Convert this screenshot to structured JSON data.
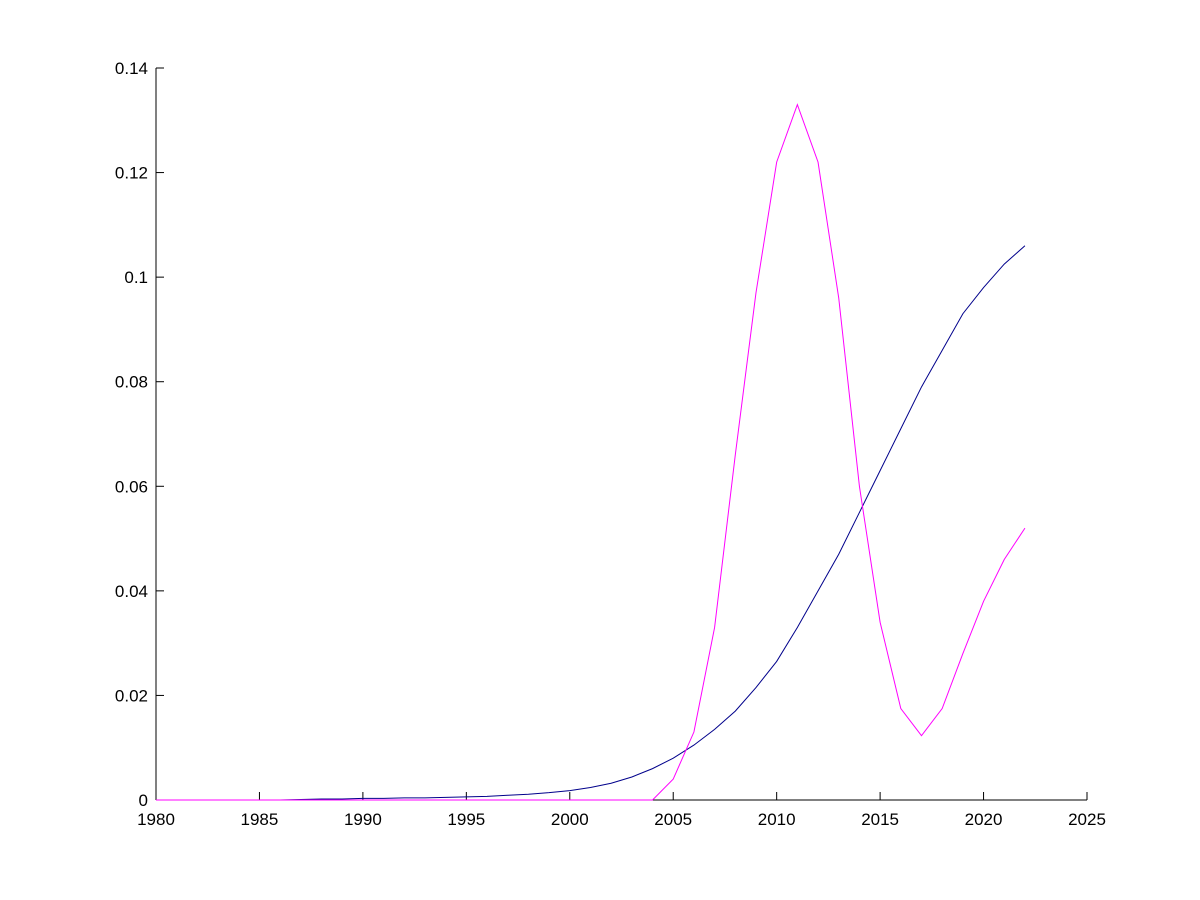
{
  "chart_data": {
    "type": "line",
    "x": [
      1980,
      1981,
      1982,
      1983,
      1984,
      1985,
      1986,
      1987,
      1988,
      1989,
      1990,
      1991,
      1992,
      1993,
      1994,
      1995,
      1996,
      1997,
      1998,
      1999,
      2000,
      2001,
      2002,
      2003,
      2004,
      2005,
      2006,
      2007,
      2008,
      2009,
      2010,
      2011,
      2012,
      2013,
      2014,
      2015,
      2016,
      2017,
      2018,
      2019,
      2020,
      2021,
      2022
    ],
    "series": [
      {
        "color": "#00008b",
        "values": [
          0,
          0,
          0,
          0,
          0,
          0,
          0,
          0.0001,
          0.0002,
          0.0002,
          0.0003,
          0.0003,
          0.0004,
          0.0004,
          0.0005,
          0.0006,
          0.0007,
          0.0009,
          0.0011,
          0.0014,
          0.0018,
          0.0024,
          0.0032,
          0.0044,
          0.006,
          0.008,
          0.0105,
          0.0135,
          0.017,
          0.0215,
          0.0265,
          0.033,
          0.04,
          0.047,
          0.055,
          0.063,
          0.071,
          0.079,
          0.086,
          0.093,
          0.098,
          0.1025,
          0.106
        ]
      },
      {
        "color": "#ff00ff",
        "values": [
          0,
          0,
          0,
          0,
          0,
          0,
          0,
          0,
          0,
          0,
          0,
          0,
          0,
          0,
          0,
          0,
          0,
          0,
          0,
          0,
          0,
          0,
          0,
          0,
          0,
          0.004,
          0.013,
          0.033,
          0.066,
          0.097,
          0.122,
          0.133,
          0.122,
          0.096,
          0.06,
          0.034,
          0.0175,
          0.0123,
          0.0175,
          0.028,
          0.038,
          0.046,
          0.052
        ]
      }
    ],
    "xlim": [
      1980,
      2025
    ],
    "xticks": [
      1980,
      1985,
      1990,
      1995,
      2000,
      2005,
      2010,
      2015,
      2020,
      2025
    ],
    "ylim": [
      0,
      0.14
    ],
    "yticks": [
      0,
      0.02,
      0.04,
      0.06,
      0.08,
      0.1,
      0.12,
      0.14
    ],
    "grid": false
  }
}
